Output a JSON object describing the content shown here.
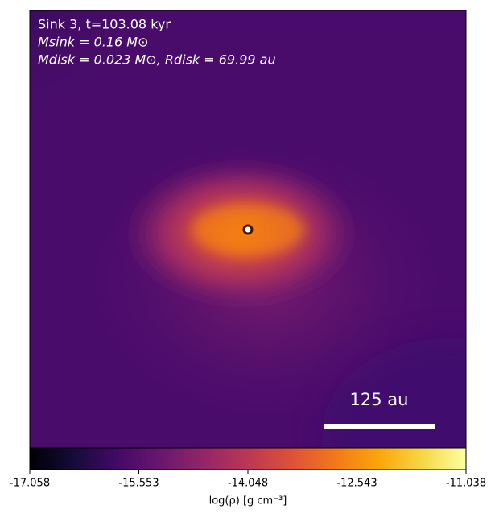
{
  "chart_data": {
    "type": "density-map",
    "annotations": [
      "Sink 3, t=103.08 kyr",
      "Msink = 0.16 M⊙",
      "Mdisk = 0.023 M⊙, Rdisk = 69.99 au"
    ],
    "scale_bar_label": "125 au",
    "colorbar": {
      "label": "log(ρ) [g cm⁻³]",
      "lim": [
        -17.058,
        -11.038
      ],
      "ticks": [
        -17.058,
        -15.553,
        -14.048,
        -12.543,
        -11.038
      ],
      "colormap": "inferno"
    }
  }
}
